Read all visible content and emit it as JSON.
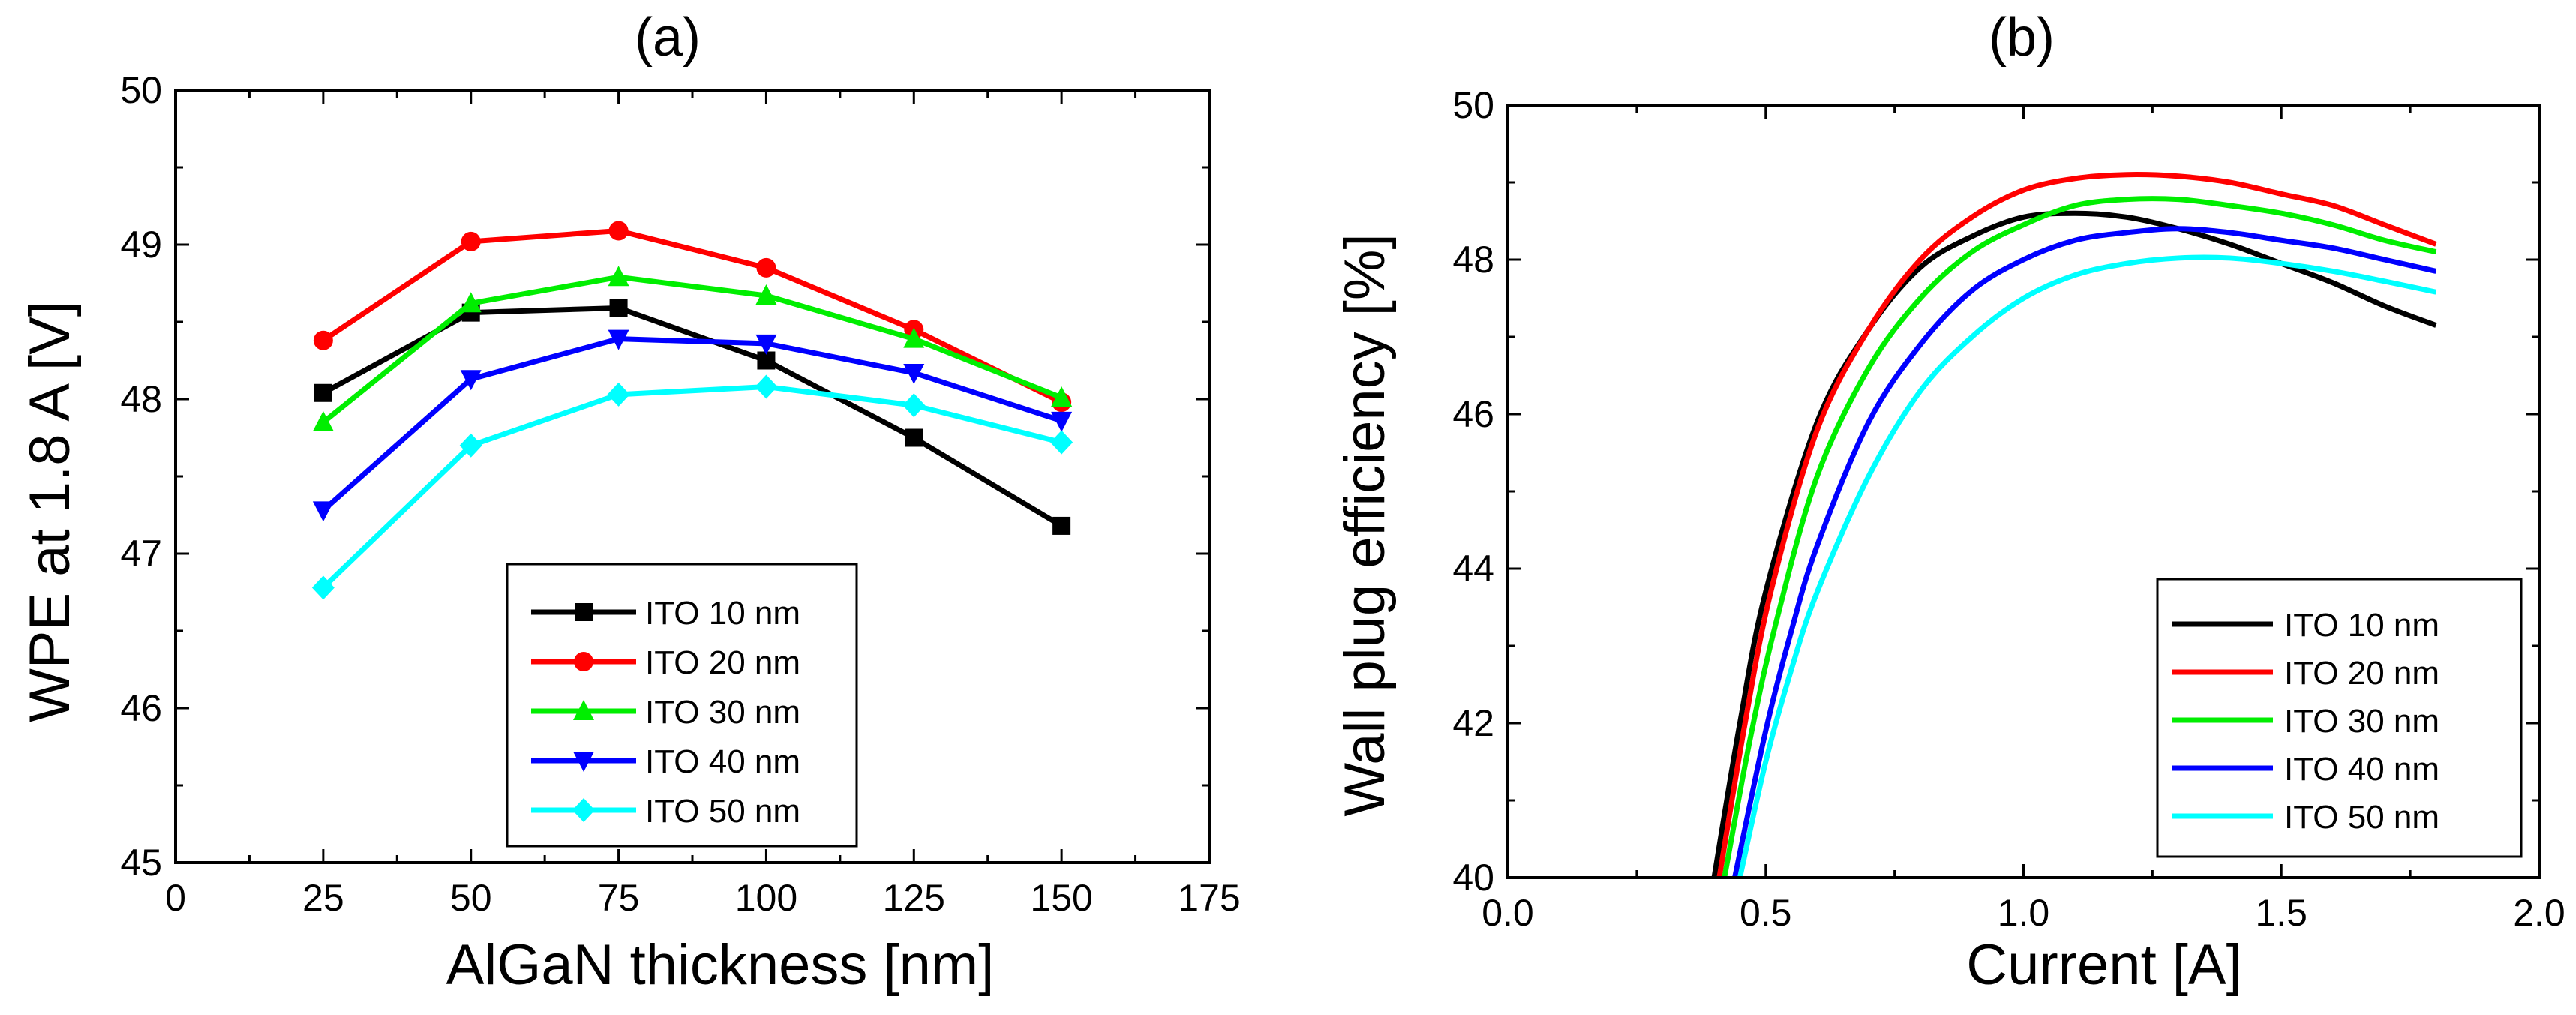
{
  "chart_data": [
    {
      "type": "line",
      "title": "(a)",
      "xlabel": "AlGaN thickness [nm]",
      "ylabel": "WPE at 1.8 A [V]",
      "xlim": [
        0,
        175
      ],
      "ylim": [
        45,
        50
      ],
      "xticks": [
        0,
        25,
        50,
        75,
        100,
        125,
        150,
        175
      ],
      "yticks": [
        45,
        46,
        47,
        48,
        49,
        50
      ],
      "x": [
        25,
        50,
        75,
        100,
        125,
        150
      ],
      "legend_position": "bottom-center",
      "series": [
        {
          "name": "ITO 10 nm",
          "color": "#000000",
          "marker": "square",
          "values": [
            48.04,
            48.56,
            48.59,
            48.25,
            47.75,
            47.18
          ]
        },
        {
          "name": "ITO 20 nm",
          "color": "#ff0000",
          "marker": "circle",
          "values": [
            48.38,
            49.02,
            49.09,
            48.85,
            48.45,
            47.98
          ]
        },
        {
          "name": "ITO 30 nm",
          "color": "#00ee00",
          "marker": "triangle-up",
          "values": [
            47.85,
            48.62,
            48.79,
            48.67,
            48.39,
            48.01
          ]
        },
        {
          "name": "ITO 40 nm",
          "color": "#0000ff",
          "marker": "triangle-down",
          "values": [
            47.28,
            48.13,
            48.39,
            48.36,
            48.17,
            47.86
          ]
        },
        {
          "name": "ITO 50 nm",
          "color": "#00ffff",
          "marker": "diamond",
          "values": [
            46.78,
            47.7,
            48.03,
            48.08,
            47.96,
            47.72
          ]
        }
      ]
    },
    {
      "type": "line",
      "title": "(b)",
      "xlabel": "Current [A]",
      "ylabel": "Wall plug efficiency [%]",
      "xlim": [
        0.0,
        2.0
      ],
      "ylim": [
        40,
        50
      ],
      "xticks": [
        "0.0",
        "0.5",
        "1.0",
        "1.5",
        "2.0"
      ],
      "yticks": [
        40,
        42,
        44,
        46,
        48,
        50
      ],
      "legend_position": "bottom-right",
      "series": [
        {
          "name": "ITO 10 nm",
          "color": "#000000",
          "points": [
            [
              0.4,
              40.0
            ],
            [
              0.45,
              42.0
            ],
            [
              0.5,
              43.7
            ],
            [
              0.6,
              45.9
            ],
            [
              0.7,
              47.1
            ],
            [
              0.8,
              47.9
            ],
            [
              0.9,
              48.3
            ],
            [
              1.0,
              48.55
            ],
            [
              1.1,
              48.6
            ],
            [
              1.2,
              48.55
            ],
            [
              1.3,
              48.4
            ],
            [
              1.4,
              48.2
            ],
            [
              1.5,
              47.95
            ],
            [
              1.6,
              47.7
            ],
            [
              1.7,
              47.4
            ],
            [
              1.8,
              47.15
            ]
          ]
        },
        {
          "name": "ITO 20 nm",
          "color": "#ff0000",
          "points": [
            [
              0.41,
              40.0
            ],
            [
              0.46,
              42.0
            ],
            [
              0.51,
              43.7
            ],
            [
              0.6,
              45.8
            ],
            [
              0.7,
              47.1
            ],
            [
              0.8,
              48.0
            ],
            [
              0.9,
              48.55
            ],
            [
              1.0,
              48.9
            ],
            [
              1.1,
              49.05
            ],
            [
              1.2,
              49.1
            ],
            [
              1.3,
              49.08
            ],
            [
              1.4,
              49.0
            ],
            [
              1.5,
              48.85
            ],
            [
              1.6,
              48.7
            ],
            [
              1.7,
              48.45
            ],
            [
              1.8,
              48.2
            ]
          ]
        },
        {
          "name": "ITO 30 nm",
          "color": "#00ee00",
          "points": [
            [
              0.42,
              40.0
            ],
            [
              0.47,
              41.8
            ],
            [
              0.52,
              43.3
            ],
            [
              0.6,
              45.2
            ],
            [
              0.7,
              46.6
            ],
            [
              0.8,
              47.5
            ],
            [
              0.9,
              48.1
            ],
            [
              1.0,
              48.45
            ],
            [
              1.1,
              48.7
            ],
            [
              1.2,
              48.78
            ],
            [
              1.3,
              48.78
            ],
            [
              1.4,
              48.7
            ],
            [
              1.5,
              48.6
            ],
            [
              1.6,
              48.45
            ],
            [
              1.7,
              48.25
            ],
            [
              1.8,
              48.1
            ]
          ]
        },
        {
          "name": "ITO 40 nm",
          "color": "#0000ff",
          "points": [
            [
              0.44,
              40.0
            ],
            [
              0.5,
              41.9
            ],
            [
              0.55,
              43.2
            ],
            [
              0.6,
              44.3
            ],
            [
              0.7,
              45.9
            ],
            [
              0.8,
              46.9
            ],
            [
              0.9,
              47.6
            ],
            [
              1.0,
              48.0
            ],
            [
              1.1,
              48.25
            ],
            [
              1.2,
              48.35
            ],
            [
              1.3,
              48.4
            ],
            [
              1.4,
              48.35
            ],
            [
              1.5,
              48.25
            ],
            [
              1.6,
              48.15
            ],
            [
              1.7,
              48.0
            ],
            [
              1.8,
              47.85
            ]
          ]
        },
        {
          "name": "ITO 50 nm",
          "color": "#00ffff",
          "points": [
            [
              0.45,
              40.0
            ],
            [
              0.5,
              41.5
            ],
            [
              0.55,
              42.7
            ],
            [
              0.6,
              43.7
            ],
            [
              0.7,
              45.2
            ],
            [
              0.8,
              46.3
            ],
            [
              0.9,
              47.0
            ],
            [
              1.0,
              47.5
            ],
            [
              1.1,
              47.8
            ],
            [
              1.2,
              47.95
            ],
            [
              1.3,
              48.02
            ],
            [
              1.4,
              48.02
            ],
            [
              1.5,
              47.95
            ],
            [
              1.6,
              47.85
            ],
            [
              1.7,
              47.72
            ],
            [
              1.8,
              47.58
            ]
          ]
        }
      ]
    }
  ]
}
